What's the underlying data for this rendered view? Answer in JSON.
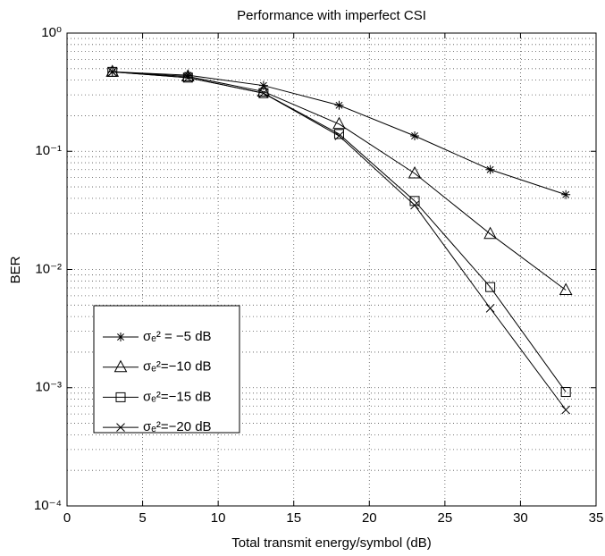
{
  "chart_data": {
    "type": "line",
    "title": "Performance with imperfect CSI",
    "xlabel": "Total transmit energy/symbol (dB)",
    "ylabel": "BER",
    "x": [
      3,
      8,
      13,
      18,
      23,
      28,
      33
    ],
    "series": [
      {
        "name": "σₑ² = −5 dB",
        "color": "#000000",
        "marker": "star",
        "values": [
          0.47,
          0.44,
          0.36,
          0.245,
          0.135,
          0.07,
          0.043
        ]
      },
      {
        "name": "σₑ²=−10 dB",
        "color": "#000000",
        "marker": "triangle",
        "values": [
          0.47,
          0.43,
          0.32,
          0.17,
          0.065,
          0.02,
          0.0067
        ]
      },
      {
        "name": "σₑ²=−15 dB",
        "color": "#000000",
        "marker": "square",
        "values": [
          0.47,
          0.42,
          0.31,
          0.14,
          0.038,
          0.0071,
          0.00092
        ]
      },
      {
        "name": "σₑ²=−20 dB",
        "color": "#000000",
        "marker": "x",
        "values": [
          0.47,
          0.42,
          0.31,
          0.135,
          0.035,
          0.0047,
          0.00065
        ]
      }
    ],
    "xlim": [
      0,
      35
    ],
    "xticks": [
      0,
      5,
      10,
      15,
      20,
      25,
      30,
      35
    ],
    "ylim": [
      0.0001,
      1
    ],
    "ylog": true,
    "yticks": [
      {
        "value": 1,
        "label": "10⁰"
      },
      {
        "value": 0.1,
        "label": "10⁻¹"
      },
      {
        "value": 0.01,
        "label": "10⁻²"
      },
      {
        "value": 0.001,
        "label": "10⁻³"
      },
      {
        "value": 0.0001,
        "label": "10⁻⁴"
      }
    ],
    "grid": true,
    "legend": "lower left"
  }
}
